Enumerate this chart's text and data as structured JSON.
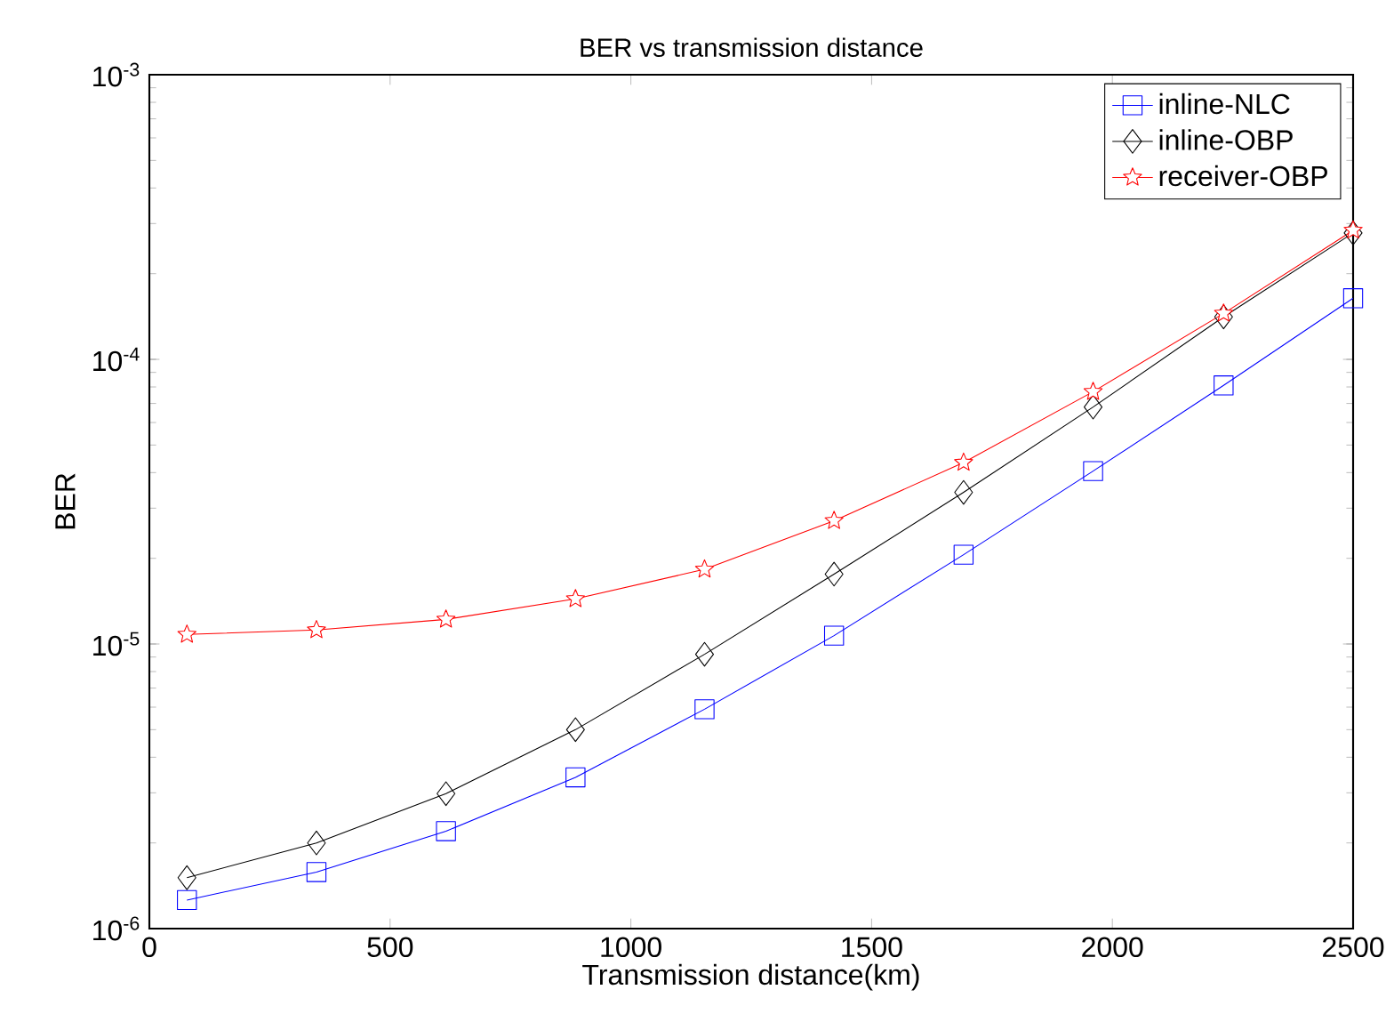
{
  "chart_data": {
    "type": "line",
    "title": "BER vs transmission distance",
    "xlabel": "Transmission distance(km)",
    "ylabel": "BER",
    "log": "y",
    "xlim": [
      0,
      2500
    ],
    "ylim": [
      1e-06,
      0.001
    ],
    "xticks": [
      0,
      500,
      1000,
      1500,
      2000,
      2500
    ],
    "yticks": [
      {
        "value": 1e-06,
        "label": "10$^{-6}$"
      },
      {
        "value": 1e-05,
        "label": "10$^{-5}$"
      },
      {
        "value": 0.0001,
        "label": "10$^{-4}$"
      },
      {
        "value": 0.001,
        "label": "10$^{-3}$"
      }
    ],
    "grid": false,
    "legend": "top right",
    "x": [
      78,
      347,
      616,
      885,
      1153,
      1422,
      1691,
      1960,
      2231,
      2500
    ],
    "series": [
      {
        "name": "inline-NLC",
        "color": "#0000ff",
        "marker": "square",
        "values": [
          1.26e-06,
          1.58e-06,
          2.2e-06,
          3.4e-06,
          5.9e-06,
          1.07e-05,
          2.06e-05,
          4.05e-05,
          8.1e-05,
          0.000164
        ]
      },
      {
        "name": "inline-OBP",
        "color": "#000000",
        "marker": "diamond",
        "values": [
          1.51e-06,
          2e-06,
          2.98e-06,
          5e-06,
          9.2e-06,
          1.76e-05,
          3.41e-05,
          6.8e-05,
          0.000141,
          0.000278
        ]
      },
      {
        "name": "receiver-OBP",
        "color": "#ff0000",
        "marker": "star",
        "values": [
          1.08e-05,
          1.12e-05,
          1.22e-05,
          1.44e-05,
          1.83e-05,
          2.71e-05,
          4.34e-05,
          7.7e-05,
          0.000145,
          0.000284
        ]
      }
    ]
  }
}
